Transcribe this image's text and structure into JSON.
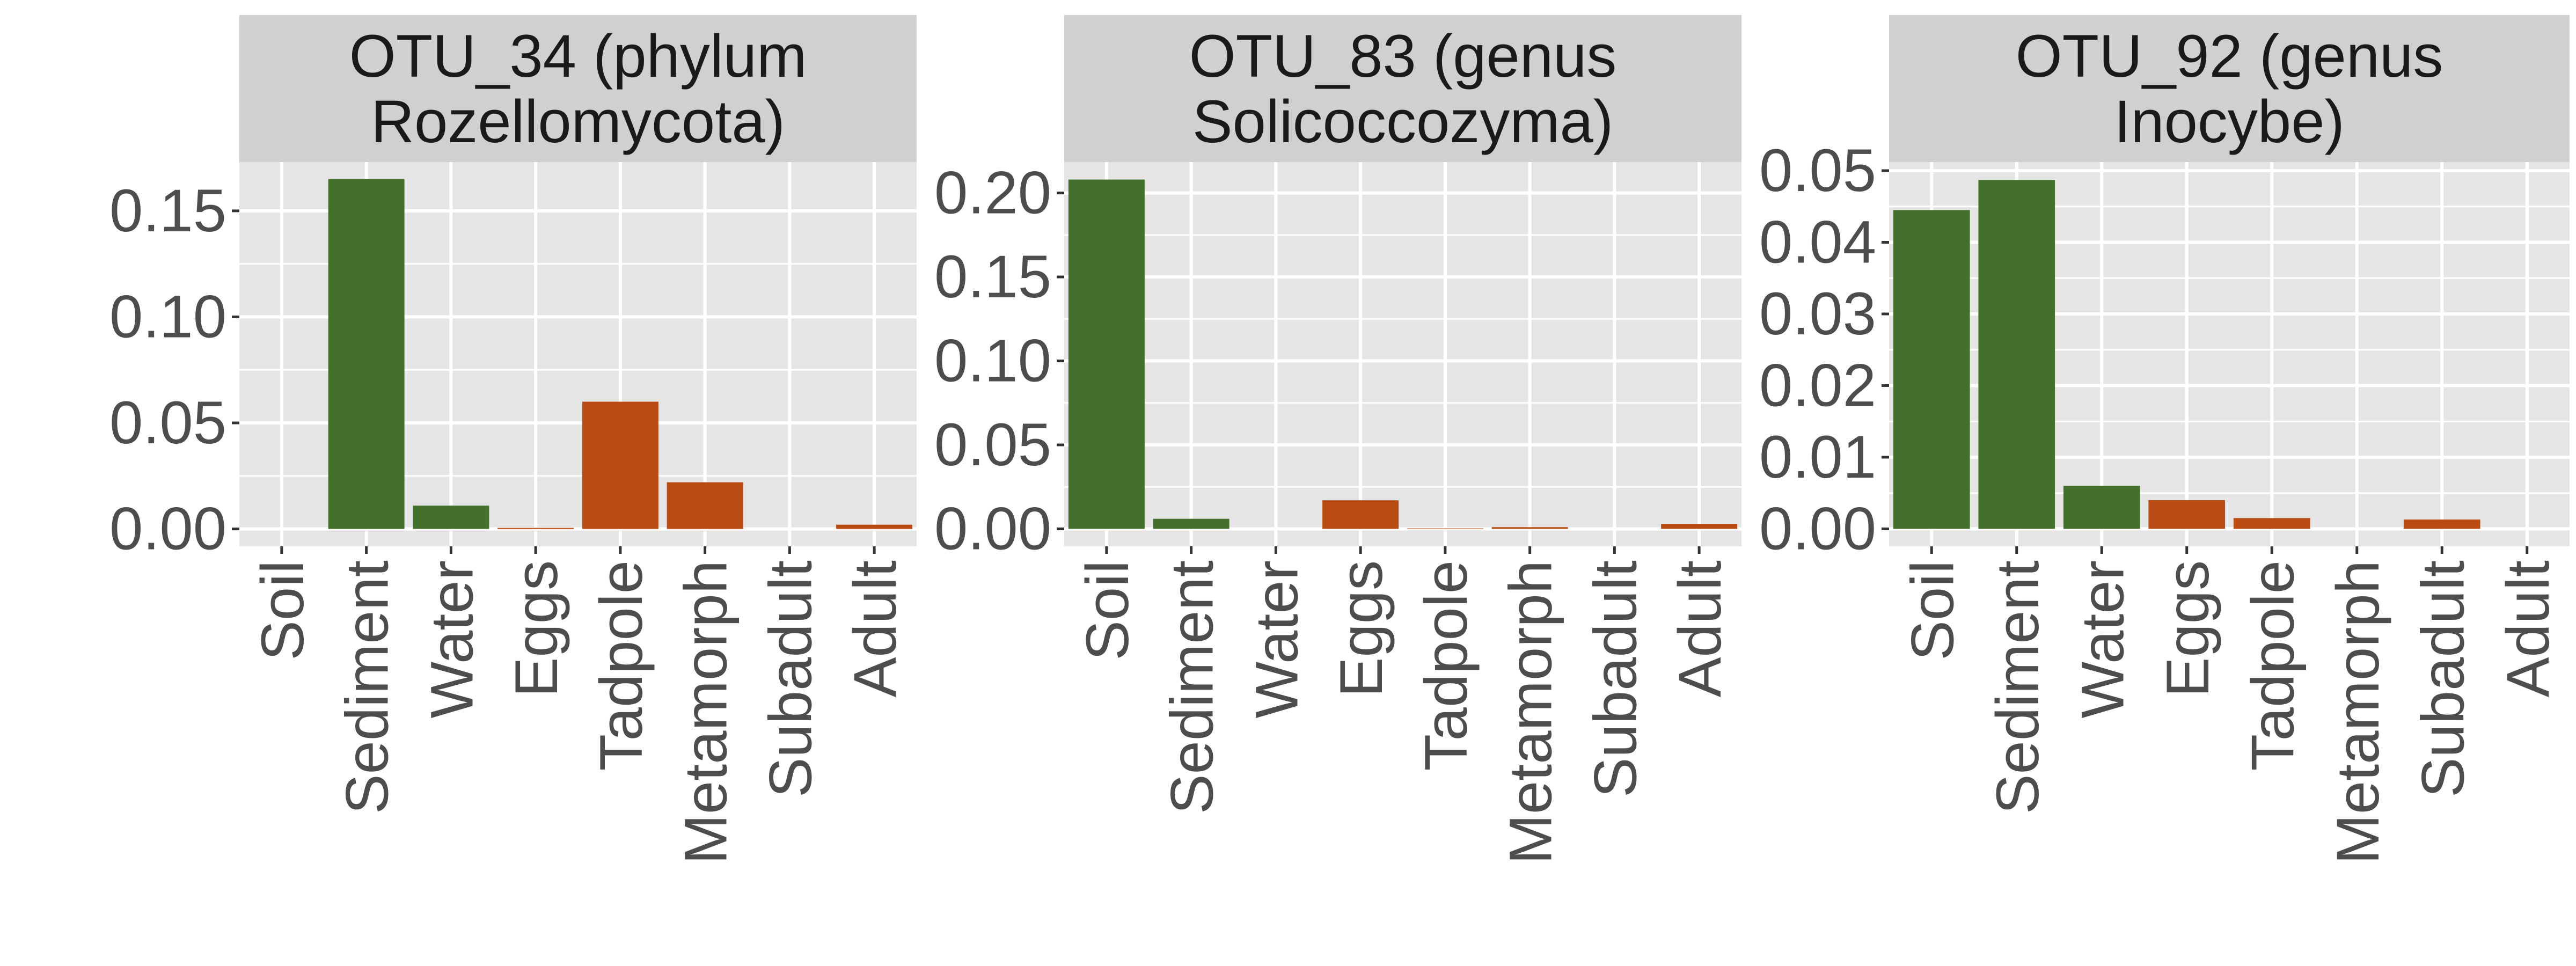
{
  "colors": {
    "environment": "#43702a",
    "amphibian": "#b94a12",
    "panel_bg": "#e5e5e5",
    "strip_bg": "#d0d0d0",
    "grid": "#ffffff"
  },
  "chart_data": [
    {
      "type": "bar",
      "title_lines": [
        "OTU_34 (phylum",
        "Rozellomycota)"
      ],
      "categories": [
        "Soil",
        "Sediment",
        "Water",
        "Eggs",
        "Tadpole",
        "Metamorph",
        "Subadult",
        "Adult"
      ],
      "values": [
        0.0,
        0.165,
        0.011,
        0.0005,
        0.06,
        0.022,
        0.0,
        0.002
      ],
      "bar_groups": [
        "environment",
        "environment",
        "environment",
        "amphibian",
        "amphibian",
        "amphibian",
        "amphibian",
        "amphibian"
      ],
      "yticks": [
        "0.00",
        "0.05",
        "0.10",
        "0.15"
      ],
      "ylim": [
        -0.0082,
        0.173
      ]
    },
    {
      "type": "bar",
      "title_lines": [
        "OTU_83 (genus",
        "Solicoccozyma)"
      ],
      "categories": [
        "Soil",
        "Sediment",
        "Water",
        "Eggs",
        "Tadpole",
        "Metamorph",
        "Subadult",
        "Adult"
      ],
      "values": [
        0.208,
        0.006,
        0.0,
        0.017,
        0.0003,
        0.001,
        0.0,
        0.003
      ],
      "bar_groups": [
        "environment",
        "environment",
        "environment",
        "amphibian",
        "amphibian",
        "amphibian",
        "amphibian",
        "amphibian"
      ],
      "yticks": [
        "0.00",
        "0.05",
        "0.10",
        "0.15",
        "0.20"
      ],
      "ylim": [
        -0.0104,
        0.2184
      ]
    },
    {
      "type": "bar",
      "title_lines": [
        "OTU_92 (genus",
        "Inocybe)"
      ],
      "categories": [
        "Soil",
        "Sediment",
        "Water",
        "Eggs",
        "Tadpole",
        "Metamorph",
        "Subadult",
        "Adult"
      ],
      "values": [
        0.0445,
        0.0487,
        0.006,
        0.004,
        0.0015,
        0.0,
        0.0013,
        0.0
      ],
      "bar_groups": [
        "environment",
        "environment",
        "environment",
        "amphibian",
        "amphibian",
        "amphibian",
        "amphibian",
        "amphibian"
      ],
      "yticks": [
        "0.00",
        "0.01",
        "0.02",
        "0.03",
        "0.04",
        "0.05"
      ],
      "ylim": [
        -0.00244,
        0.0512
      ]
    }
  ]
}
